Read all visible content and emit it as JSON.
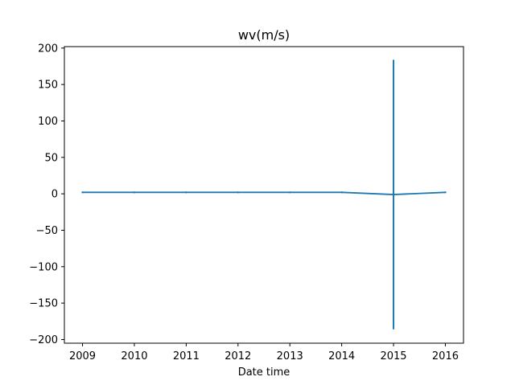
{
  "chart_data": {
    "type": "line",
    "title": "wv(m/s)",
    "xlabel": "Date time",
    "ylabel": "",
    "x": [
      2009,
      2010,
      2011,
      2012,
      2013,
      2014,
      2015,
      2016
    ],
    "series": [
      {
        "values": [
          2,
          2,
          2,
          2,
          2,
          2,
          -1,
          2
        ],
        "error_band": [
          0,
          0,
          0,
          0,
          0,
          0,
          185,
          0
        ],
        "color": "#1f77b4"
      }
    ],
    "xticks": [
      "2009",
      "2010",
      "2011",
      "2012",
      "2013",
      "2014",
      "2015",
      "2016"
    ],
    "yticks": [
      "200",
      "150",
      "100",
      "50",
      "0",
      "−50",
      "−100",
      "−150",
      "−200"
    ],
    "ytick_values": [
      200,
      150,
      100,
      50,
      0,
      -50,
      -100,
      -150,
      -200
    ],
    "xlim": [
      2008.65,
      2016.35
    ],
    "ylim": [
      -205,
      202
    ],
    "grid": false,
    "legend": "none"
  }
}
